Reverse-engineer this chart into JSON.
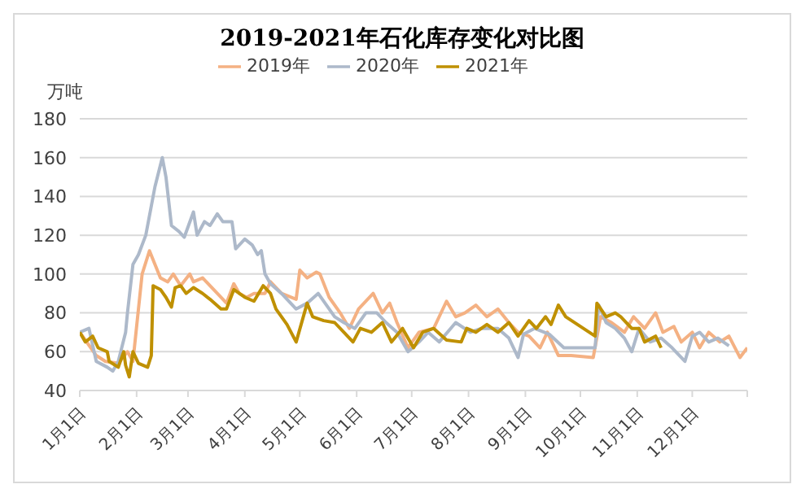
{
  "chart_data": {
    "type": "line",
    "title": "2019-2021年石化库存变化对比图",
    "ylabel": "万吨",
    "legend": "top",
    "grid": "y",
    "marker": "none",
    "line_style": "solid",
    "xlim": [
      "--01-01",
      "--12-31"
    ],
    "xticks": [
      {
        "value": "--01-01",
        "label": "1月1日"
      },
      {
        "value": "--02-01",
        "label": "2月1日"
      },
      {
        "value": "--03-01",
        "label": "3月1日"
      },
      {
        "value": "--04-01",
        "label": "4月1日"
      },
      {
        "value": "--05-01",
        "label": "5月1日"
      },
      {
        "value": "--06-01",
        "label": "6月1日"
      },
      {
        "value": "--07-01",
        "label": "7月1日"
      },
      {
        "value": "--08-01",
        "label": "8月1日"
      },
      {
        "value": "--09-01",
        "label": "9月1日"
      },
      {
        "value": "--10-01",
        "label": "10月1日"
      },
      {
        "value": "--11-01",
        "label": "11月1日"
      },
      {
        "value": "--12-01",
        "label": "12月1日"
      },
      {
        "value": "--12-31",
        "label": null
      }
    ],
    "ylim": [
      40,
      180
    ],
    "yticks": [
      40,
      60,
      80,
      100,
      120,
      140,
      160,
      180
    ],
    "series": [
      {
        "name": "2019年",
        "color": "#f4b183",
        "x": [
          "--01-01",
          "--01-07",
          "--01-10",
          "--01-15",
          "--01-22",
          "--01-27",
          "--01-30",
          "--02-04",
          "--02-08",
          "--02-11",
          "--02-14",
          "--02-18",
          "--02-21",
          "--02-25",
          "--03-02",
          "--03-04",
          "--03-09",
          "--03-13",
          "--03-19",
          "--03-22",
          "--03-26",
          "--03-29",
          "--04-02",
          "--04-06",
          "--04-12",
          "--04-15",
          "--04-21",
          "--04-29",
          "--05-01",
          "--05-05",
          "--05-10",
          "--05-12",
          "--05-17",
          "--05-23",
          "--05-28",
          "--06-02",
          "--06-10",
          "--06-15",
          "--06-19",
          "--06-23",
          "--06-29",
          "--07-05",
          "--07-13",
          "--07-20",
          "--07-25",
          "--07-30",
          "--08-05",
          "--08-11",
          "--08-17",
          "--08-23",
          "--08-28",
          "--09-03",
          "--09-09",
          "--09-13",
          "--09-19",
          "--09-26",
          "--10-08",
          "--10-12",
          "--10-18",
          "--10-25",
          "--10-30",
          "--11-05",
          "--11-11",
          "--11-15",
          "--11-21",
          "--11-25",
          "--12-01",
          "--12-05",
          "--12-10",
          "--12-16",
          "--12-21",
          "--12-27",
          "--12-31"
        ],
        "values": [
          70,
          62,
          58,
          55,
          54,
          60,
          55,
          100,
          112,
          105,
          98,
          96,
          100,
          94,
          100,
          96,
          98,
          94,
          88,
          85,
          95,
          90,
          88,
          90,
          90,
          96,
          90,
          87,
          102,
          98,
          101,
          100,
          88,
          80,
          72,
          82,
          90,
          80,
          85,
          75,
          62,
          70,
          72,
          86,
          78,
          80,
          84,
          78,
          82,
          75,
          70,
          68,
          62,
          70,
          58,
          58,
          57,
          78,
          75,
          70,
          78,
          72,
          80,
          70,
          73,
          65,
          70,
          62,
          70,
          65,
          68,
          57,
          62
        ]
      },
      {
        "name": "2020年",
        "color": "#adb9ca",
        "x": [
          "--01-01",
          "--01-06",
          "--01-10",
          "--01-16",
          "--01-19",
          "--01-22",
          "--01-26",
          "--01-27",
          "--01-30",
          "--02-02",
          "--02-06",
          "--02-11",
          "--02-15",
          "--02-17",
          "--02-20",
          "--02-24",
          "--02-27",
          "--03-04",
          "--03-06",
          "--03-10",
          "--03-13",
          "--03-17",
          "--03-20",
          "--03-25",
          "--03-27",
          "--04-01",
          "--04-05",
          "--04-08",
          "--04-10",
          "--04-12",
          "--04-15",
          "--04-21",
          "--04-29",
          "--05-05",
          "--05-11",
          "--05-20",
          "--05-25",
          "--05-31",
          "--06-06",
          "--06-12",
          "--06-17",
          "--06-23",
          "--06-29",
          "--07-05",
          "--07-10",
          "--07-16",
          "--07-25",
          "--08-02",
          "--08-08",
          "--08-17",
          "--08-23",
          "--08-28",
          "--08-31",
          "--09-06",
          "--09-14",
          "--09-22",
          "--10-09",
          "--10-11",
          "--10-15",
          "--10-20",
          "--10-25",
          "--10-29",
          "--11-02",
          "--11-08",
          "--11-14",
          "--11-20",
          "--11-27",
          "--12-01",
          "--12-05",
          "--12-10",
          "--12-15",
          "--12-21"
        ],
        "values": [
          70,
          72,
          55,
          52,
          50,
          55,
          70,
          80,
          105,
          110,
          120,
          145,
          160,
          150,
          125,
          122,
          119,
          132,
          120,
          127,
          125,
          131,
          127,
          127,
          113,
          118,
          115,
          110,
          112,
          100,
          95,
          90,
          82,
          85,
          90,
          78,
          75,
          72,
          80,
          80,
          75,
          70,
          60,
          65,
          70,
          65,
          75,
          70,
          72,
          72,
          67,
          57,
          69,
          72,
          69,
          62,
          62,
          84,
          75,
          72,
          67,
          60,
          72,
          65,
          67,
          62,
          55,
          68,
          70,
          65,
          67,
          63
        ]
      },
      {
        "name": "2021年",
        "color": "#bf9000",
        "x": [
          "--01-01",
          "--01-04",
          "--01-08",
          "--01-11",
          "--01-16",
          "--01-17",
          "--01-22",
          "--01-25",
          "--01-26",
          "--01-28",
          "--01-30",
          "--02-02",
          "--02-07",
          "--02-09",
          "--02-10",
          "--02-14",
          "--02-17",
          "--02-20",
          "--02-22",
          "--02-25",
          "--02-28",
          "--03-04",
          "--03-09",
          "--03-13",
          "--03-19",
          "--03-22",
          "--03-26",
          "--04-01",
          "--04-06",
          "--04-11",
          "--04-15",
          "--04-18",
          "--04-24",
          "--04-29",
          "--05-05",
          "--05-08",
          "--05-14",
          "--05-20",
          "--05-25",
          "--05-30",
          "--06-03",
          "--06-09",
          "--06-15",
          "--06-20",
          "--06-26",
          "--07-02",
          "--07-07",
          "--07-13",
          "--07-20",
          "--07-28",
          "--07-31",
          "--08-05",
          "--08-11",
          "--08-17",
          "--08-23",
          "--08-28",
          "--09-03",
          "--09-07",
          "--09-12",
          "--09-15",
          "--09-19",
          "--09-23",
          "--10-09",
          "--10-10",
          "--10-15",
          "--10-20",
          "--10-23",
          "--10-29",
          "--11-02",
          "--11-05",
          "--11-11",
          "--11-14"
        ],
        "values": [
          70,
          65,
          68,
          62,
          60,
          55,
          52,
          60,
          53,
          47,
          60,
          54,
          52,
          58,
          94,
          92,
          88,
          83,
          93,
          94,
          90,
          93,
          90,
          87,
          82,
          82,
          92,
          88,
          86,
          94,
          90,
          82,
          74,
          65,
          85,
          78,
          76,
          75,
          70,
          65,
          72,
          70,
          75,
          65,
          72,
          62,
          70,
          72,
          66,
          65,
          72,
          70,
          74,
          70,
          75,
          68,
          76,
          72,
          78,
          74,
          84,
          78,
          68,
          85,
          78,
          80,
          78,
          72,
          72,
          65,
          68,
          62
        ]
      }
    ]
  }
}
